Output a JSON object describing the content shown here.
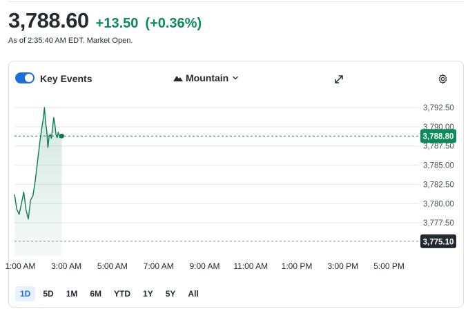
{
  "quote": {
    "price": "3,788.60",
    "change": "+13.50",
    "change_pct": "(+0.36%)",
    "as_of": "As of 2:35:40 AM EDT. Market Open."
  },
  "toolbar": {
    "key_events_label": "Key Events",
    "key_events_on": true,
    "chart_type_label": "Mountain",
    "expand_icon": "expand-icon",
    "settings_icon": "gear-icon"
  },
  "colors": {
    "up": "#0b8a5a",
    "accent": "#1a6fdc",
    "line": "#0e7a55",
    "prev_close_badge": "#232a31"
  },
  "chart_data": {
    "type": "area",
    "xlabel": "",
    "ylabel": "",
    "x_ticks": [
      "1:00 AM",
      "3:00 AM",
      "5:00 AM",
      "7:00 AM",
      "9:00 AM",
      "11:00 AM",
      "1:00 PM",
      "3:00 PM",
      "5:00 PM"
    ],
    "x_tick_hours": [
      1,
      3,
      5,
      7,
      9,
      11,
      13,
      15,
      17
    ],
    "y_ticks": [
      "3,792.50",
      "3,790.00",
      "3,787.50",
      "3,785.00",
      "3,782.50",
      "3,780.00",
      "3,777.50"
    ],
    "y_tick_values": [
      3792.5,
      3790.0,
      3787.5,
      3785.0,
      3782.5,
      3780.0,
      3777.5
    ],
    "ylim": [
      3775.0,
      3792.5
    ],
    "xlim": [
      0.75,
      18.3
    ],
    "current_price_label": "3,788.80",
    "current_price": 3788.8,
    "previous_close_label": "3,775.10",
    "previous_close": 3775.1,
    "grid": true,
    "series": [
      {
        "x": [
          0.75,
          0.85,
          0.95,
          1.05,
          1.15,
          1.25,
          1.35,
          1.45,
          1.55,
          1.65,
          1.75,
          1.85,
          1.95,
          2.0,
          2.05,
          2.1,
          2.15,
          2.2,
          2.25,
          2.3,
          2.35,
          2.4,
          2.45,
          2.5,
          2.55,
          2.6,
          2.65,
          2.72,
          2.8
        ],
        "y": [
          3781.2,
          3779.3,
          3778.6,
          3780.0,
          3781.5,
          3779.2,
          3778.0,
          3780.5,
          3781.0,
          3783.0,
          3785.5,
          3788.0,
          3790.2,
          3791.0,
          3792.5,
          3790.5,
          3789.5,
          3787.3,
          3788.8,
          3789.0,
          3788.5,
          3789.8,
          3791.2,
          3790.4,
          3789.0,
          3788.6,
          3789.3,
          3788.6,
          3788.8
        ]
      }
    ]
  },
  "ranges": {
    "items": [
      "1D",
      "5D",
      "1M",
      "6M",
      "YTD",
      "1Y",
      "5Y",
      "All"
    ],
    "active": "1D"
  }
}
